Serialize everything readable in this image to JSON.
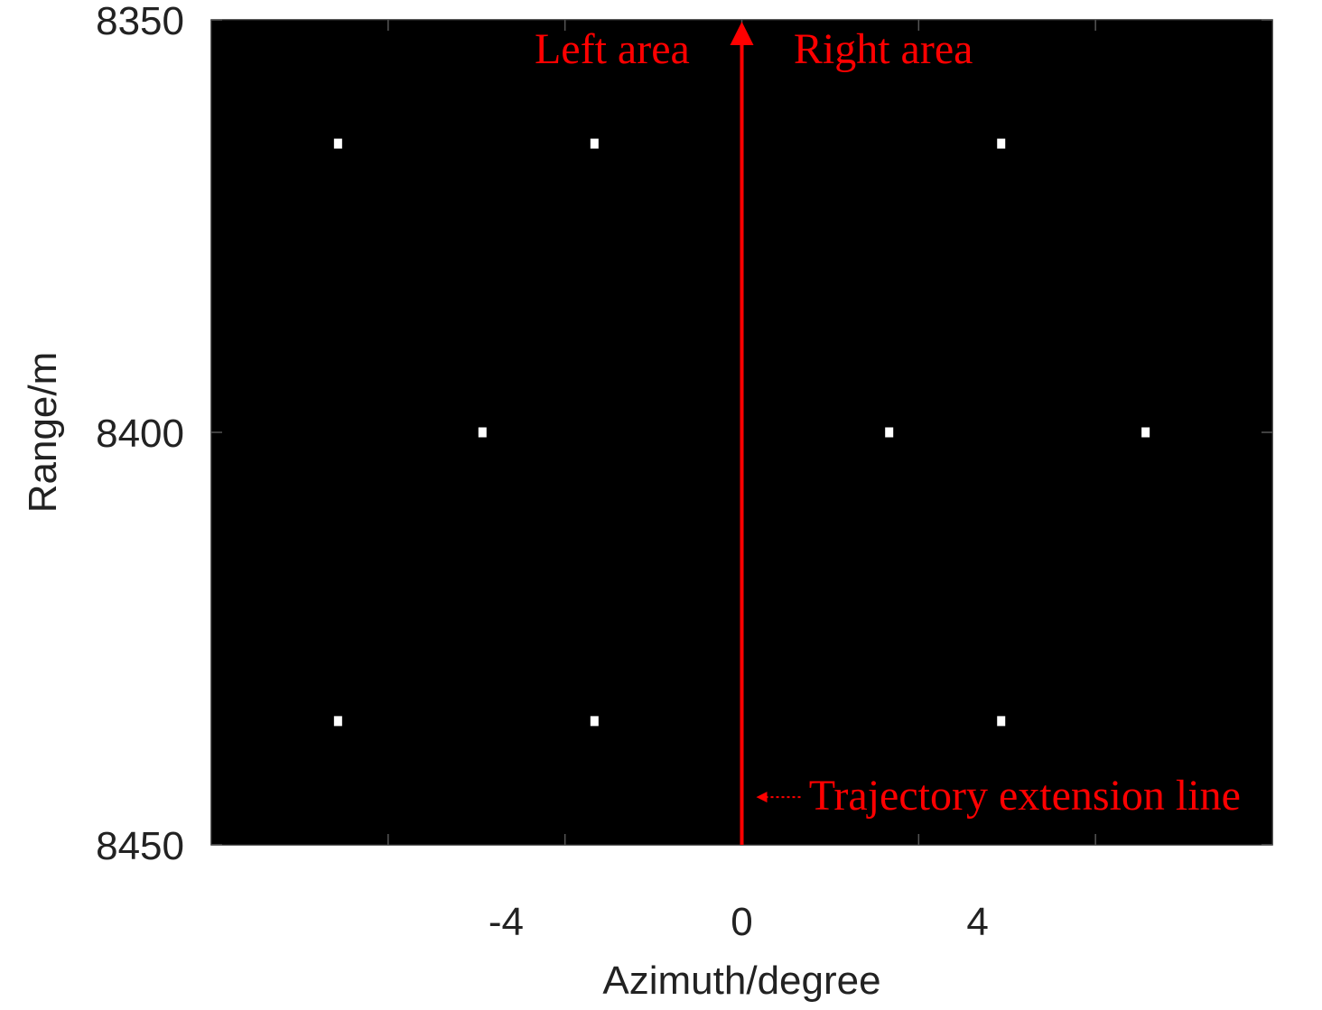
{
  "chart_data": {
    "type": "scatter",
    "title": "",
    "xlabel": "Azimuth/degree",
    "ylabel": "Range/m",
    "xlim": [
      -9,
      9
    ],
    "ylim": [
      8350,
      8450
    ],
    "y_reversed": true,
    "x_ticks": [
      -4,
      0,
      4
    ],
    "x_tick_labels": [
      "-4",
      "0",
      "4"
    ],
    "y_ticks": [
      8350,
      8400,
      8450
    ],
    "y_tick_labels": [
      "8350",
      "8400",
      "8450"
    ],
    "grid": false,
    "legend": "none",
    "background_color": "#000000",
    "point_color": "#ffffff",
    "annotation_color": "#ff0000",
    "series": [
      {
        "points": [
          {
            "x": -6.85,
            "y": 8365
          },
          {
            "x": -2.5,
            "y": 8365
          },
          {
            "x": 4.4,
            "y": 8365
          },
          {
            "x": -4.4,
            "y": 8400
          },
          {
            "x": 2.5,
            "y": 8400
          },
          {
            "x": 6.85,
            "y": 8400
          },
          {
            "x": -6.85,
            "y": 8435
          },
          {
            "x": -2.5,
            "y": 8435
          },
          {
            "x": 4.4,
            "y": 8435
          }
        ]
      }
    ],
    "trajectory_line": {
      "x": 0
    },
    "annotations": [
      {
        "text": "Left area",
        "x": -2.2,
        "y": 8353.5
      },
      {
        "text": "Right area",
        "x": 2.4,
        "y": 8353.5
      },
      {
        "text": "Trajectory extension line",
        "x": 4.8,
        "y": 8444
      }
    ]
  }
}
